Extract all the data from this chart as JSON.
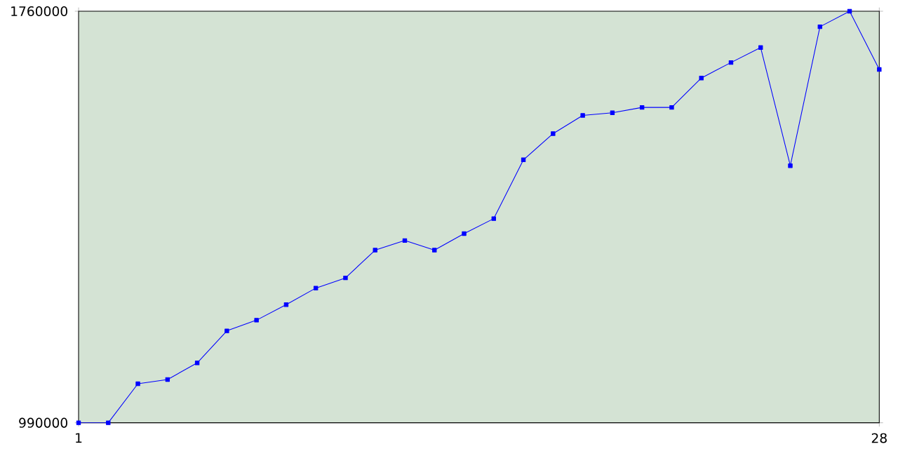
{
  "chart_data": {
    "type": "line",
    "x": [
      1,
      2,
      3,
      4,
      5,
      6,
      7,
      8,
      9,
      10,
      11,
      12,
      13,
      14,
      15,
      16,
      17,
      18,
      19,
      20,
      21,
      22,
      23,
      24,
      25,
      26,
      27,
      28
    ],
    "series": [
      {
        "color": "#0000ff",
        "values": [
          990000,
          990000,
          1063000,
          1071000,
          1102000,
          1162000,
          1182000,
          1211000,
          1242000,
          1261000,
          1313000,
          1331000,
          1313000,
          1344000,
          1372000,
          1482000,
          1531000,
          1565000,
          1570000,
          1580000,
          1580000,
          1635000,
          1664000,
          1692000,
          1471000,
          1731000,
          1760000,
          1651000
        ]
      }
    ],
    "xlim": [
      1,
      28
    ],
    "xticks": [
      1,
      28
    ],
    "ylim": [
      990000,
      1760000
    ],
    "yticks": [
      990000,
      1760000
    ],
    "marker": "square",
    "line_style": "solid",
    "grid": false
  }
}
